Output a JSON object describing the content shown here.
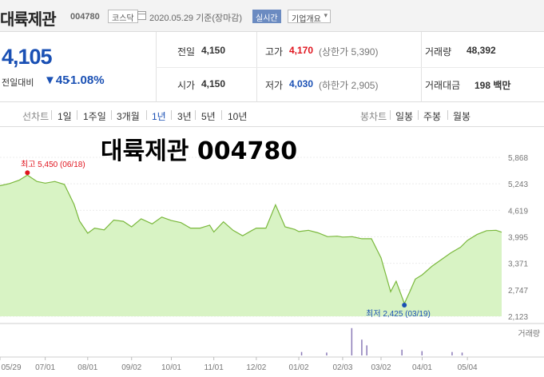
{
  "header": {
    "name": "대륙제관",
    "code": "004780",
    "market": "코스닥",
    "date_text": "2020.05.29 기준(장마감)",
    "realtime_label": "실시간",
    "company_info_label": "기업개요"
  },
  "quote": {
    "price": "4,105",
    "change_label": "전일대비",
    "change_value": "▼45",
    "change_pct": "-1.08%",
    "prev_close_label": "전일",
    "prev_close": "4,150",
    "open_label": "시가",
    "open": "4,150",
    "high_label": "고가",
    "high": "4,170",
    "upper_limit": "(상한가 5,390)",
    "low_label": "저가",
    "low": "4,030",
    "lower_limit": "(하한가 2,905)",
    "volume_label": "거래량",
    "volume": "48,392",
    "amount_label": "거래대금",
    "amount": "198 백만"
  },
  "periods": {
    "line_label": "선차트",
    "items": [
      "1일",
      "1주일",
      "3개월",
      "1년",
      "3년",
      "5년",
      "10년"
    ],
    "active": "1년",
    "candle_label": "봉차트",
    "candle_items": [
      "일봉",
      "주봉",
      "월봉"
    ]
  },
  "colors": {
    "down": "#1a50b4",
    "up": "#e0141e",
    "line": "#7ab83c",
    "fill": "#d8f3c4"
  },
  "chart_data": {
    "type": "area",
    "title": "대륙제관 004780",
    "ylim": [
      2123,
      5868
    ],
    "y_ticks": [
      "5,868",
      "5,243",
      "4,619",
      "3,995",
      "3,371",
      "2,747",
      "2,123"
    ],
    "x_ticks": [
      "05/29",
      "07/01",
      "08/01",
      "09/02",
      "10/01",
      "11/01",
      "12/02",
      "01/02",
      "02/03",
      "03/02",
      "04/01",
      "05/04"
    ],
    "high_annotation": "최고 5,450 (06/18)",
    "low_annotation": "최저 2,425 (03/19)",
    "volume_legend": "거래량",
    "x": [
      "2019-05-29",
      "2019-06-05",
      "2019-06-12",
      "2019-06-18",
      "2019-06-25",
      "2019-07-01",
      "2019-07-08",
      "2019-07-15",
      "2019-07-22",
      "2019-07-26",
      "2019-08-01",
      "2019-08-06",
      "2019-08-13",
      "2019-08-20",
      "2019-08-27",
      "2019-09-02",
      "2019-09-09",
      "2019-09-17",
      "2019-09-24",
      "2019-10-01",
      "2019-10-08",
      "2019-10-15",
      "2019-10-22",
      "2019-10-29",
      "2019-11-01",
      "2019-11-08",
      "2019-11-15",
      "2019-11-22",
      "2019-11-29",
      "2019-12-02",
      "2019-12-09",
      "2019-12-16",
      "2019-12-23",
      "2019-12-30",
      "2020-01-02",
      "2020-01-09",
      "2020-01-16",
      "2020-01-23",
      "2020-01-30",
      "2020-02-03",
      "2020-02-10",
      "2020-02-17",
      "2020-02-24",
      "2020-03-02",
      "2020-03-09",
      "2020-03-13",
      "2020-03-19",
      "2020-03-23",
      "2020-03-27",
      "2020-04-01",
      "2020-04-08",
      "2020-04-15",
      "2020-04-22",
      "2020-04-29",
      "2020-05-04",
      "2020-05-11",
      "2020-05-18",
      "2020-05-25",
      "2020-05-29"
    ],
    "values": [
      5200,
      5250,
      5330,
      5450,
      5300,
      5260,
      5300,
      5230,
      4760,
      4370,
      4080,
      4200,
      4160,
      4390,
      4360,
      4230,
      4420,
      4300,
      4460,
      4380,
      4330,
      4200,
      4200,
      4270,
      4110,
      4350,
      4150,
      4020,
      4150,
      4200,
      4200,
      4750,
      4230,
      4170,
      4120,
      4150,
      4090,
      4000,
      4010,
      3990,
      4000,
      3950,
      3950,
      3500,
      2700,
      2950,
      2425,
      2700,
      3000,
      3100,
      3300,
      3460,
      3620,
      3750,
      3910,
      4050,
      4140,
      4150,
      4105
    ],
    "volume_bars": [
      [
        0.7,
        0.95
      ],
      [
        0.72,
        0.55
      ],
      [
        0.73,
        0.35
      ],
      [
        0.8,
        0.2
      ],
      [
        0.84,
        0.15
      ],
      [
        0.6,
        0.12
      ],
      [
        0.65,
        0.1
      ],
      [
        0.9,
        0.12
      ],
      [
        0.92,
        0.1
      ]
    ]
  }
}
